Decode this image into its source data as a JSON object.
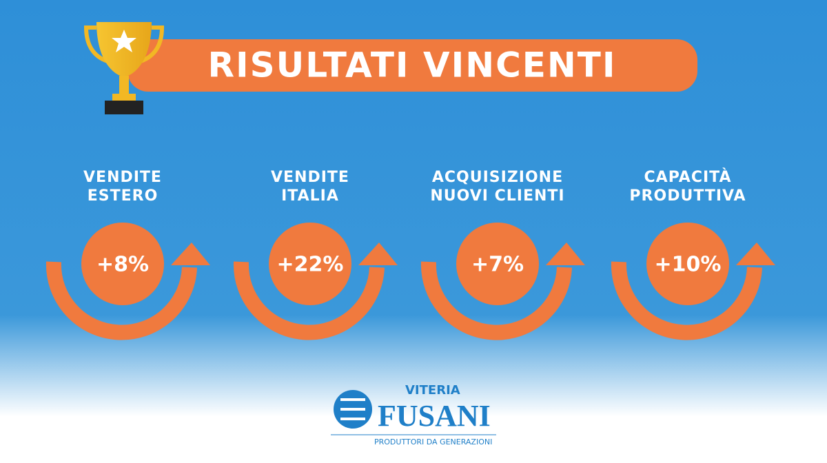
{
  "header": {
    "title": "RISULTATI VINCENTI"
  },
  "items": [
    {
      "label": [
        "VENDITE",
        "ESTERO"
      ],
      "value": "+8%"
    },
    {
      "label": [
        "VENDITE",
        "ITALIA"
      ],
      "value": "+22%"
    },
    {
      "label": [
        "ACQUISIZIONE",
        "NUOVI CLIENTI"
      ],
      "value": "+7%"
    },
    {
      "label": [
        "CAPACITÀ",
        "PRODUTTIVA"
      ],
      "value": "+10%"
    }
  ],
  "logo": {
    "top": "VITERIA",
    "name": "FUSANI",
    "tagline": "PRODUTTORI DA GENERAZIONI"
  }
}
